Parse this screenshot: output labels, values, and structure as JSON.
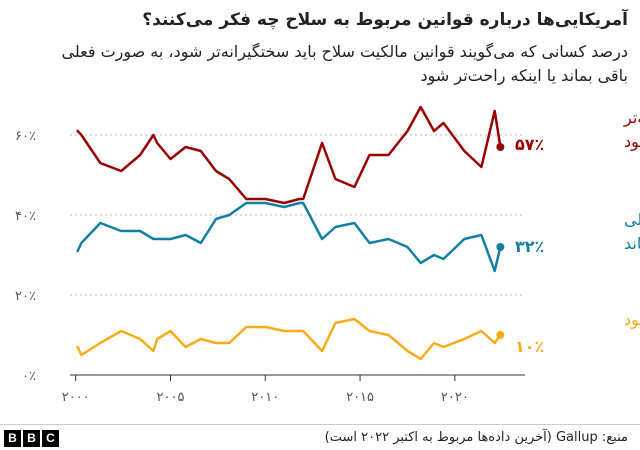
{
  "title": "آمریکایی‌ها درباره قوانین مربوط به سلاح چه فکر می‌کنند؟",
  "subtitle": "درصد کسانی که می‌گویند قوانین مالکیت سلاح باید سختگیرانه‌تر شود، به صورت فعلی باقی بماند یا اینکه راحت‌تر شود",
  "source": "منبع: Gallup (آخرین داده‌ها مربوط به اکتبر ۲۰۲۲ است)",
  "logo_letters": [
    "B",
    "B",
    "C"
  ],
  "chart_data": {
    "type": "line",
    "title": "",
    "xlabel": "",
    "ylabel": "",
    "xlim": [
      1999.7,
      2023.7
    ],
    "ylim": [
      0,
      70
    ],
    "x_tick_values": [
      2000,
      2005,
      2010,
      2015,
      2020
    ],
    "x_tick_labels": [
      "۲۰۰۰",
      "۲۰۰۵",
      "۲۰۱۰",
      "۲۰۱۵",
      "۲۰۲۰"
    ],
    "y_tick_values": [
      0,
      20,
      40,
      60
    ],
    "y_tick_labels": [
      "۰٪",
      "۲۰٪",
      "۴۰٪",
      "۶۰٪"
    ],
    "grid": "horizontal dotted",
    "legend": "labels at line ends, right",
    "series": [
      {
        "name": "سختگیرانه‌تر شود",
        "end_label": "۵۷٪",
        "color": "#990000",
        "x": [
          2000.1,
          2000.3,
          2001.3,
          2002.4,
          2003.4,
          2004.1,
          2004.3,
          2005.0,
          2005.8,
          2006.6,
          2007.4,
          2008.1,
          2009.0,
          2010.0,
          2011.0,
          2011.8,
          2012.0,
          2013.0,
          2013.7,
          2014.7,
          2015.5,
          2016.5,
          2017.5,
          2018.2,
          2018.9,
          2019.4,
          2020.5,
          2021.4,
          2022.1,
          2022.4
        ],
        "values": [
          61,
          60,
          53,
          51,
          55,
          60,
          58,
          54,
          57,
          56,
          51,
          49,
          44,
          44,
          43,
          44,
          44,
          58,
          49,
          47,
          55,
          55,
          61,
          67,
          61,
          63,
          56,
          52,
          66,
          57
        ]
      },
      {
        "name": "به صورت فعلی بماند",
        "end_label": "۳۲٪",
        "color": "#1380A1",
        "x": [
          2000.1,
          2000.3,
          2001.3,
          2002.4,
          2003.4,
          2004.1,
          2004.3,
          2005.0,
          2005.8,
          2006.6,
          2007.4,
          2008.1,
          2009.0,
          2010.0,
          2011.0,
          2011.8,
          2012.0,
          2013.0,
          2013.7,
          2014.7,
          2015.5,
          2016.5,
          2017.5,
          2018.2,
          2018.9,
          2019.4,
          2020.5,
          2021.4,
          2022.1,
          2022.4
        ],
        "values": [
          31,
          33,
          38,
          36,
          36,
          34,
          34,
          34,
          35,
          33,
          39,
          40,
          43,
          43,
          42,
          43,
          43,
          34,
          37,
          38,
          33,
          34,
          32,
          28,
          30,
          29,
          34,
          35,
          26,
          32
        ]
      },
      {
        "name": "آسان‌تر شود",
        "end_label": "۱۰٪",
        "color": "#FAAB18",
        "x": [
          2000.1,
          2000.3,
          2001.3,
          2002.4,
          2003.4,
          2004.1,
          2004.3,
          2005.0,
          2005.8,
          2006.6,
          2007.4,
          2008.1,
          2009.0,
          2010.0,
          2011.0,
          2011.8,
          2012.0,
          2013.0,
          2013.7,
          2014.7,
          2015.5,
          2016.5,
          2017.5,
          2018.2,
          2018.9,
          2019.4,
          2020.5,
          2021.4,
          2022.1,
          2022.4
        ],
        "values": [
          7,
          5,
          8,
          11,
          9,
          6,
          9,
          11,
          7,
          9,
          8,
          8,
          12,
          12,
          11,
          11,
          11,
          6,
          13,
          14,
          11,
          10,
          6,
          4,
          8,
          7,
          9,
          11,
          8,
          10
        ]
      }
    ]
  }
}
